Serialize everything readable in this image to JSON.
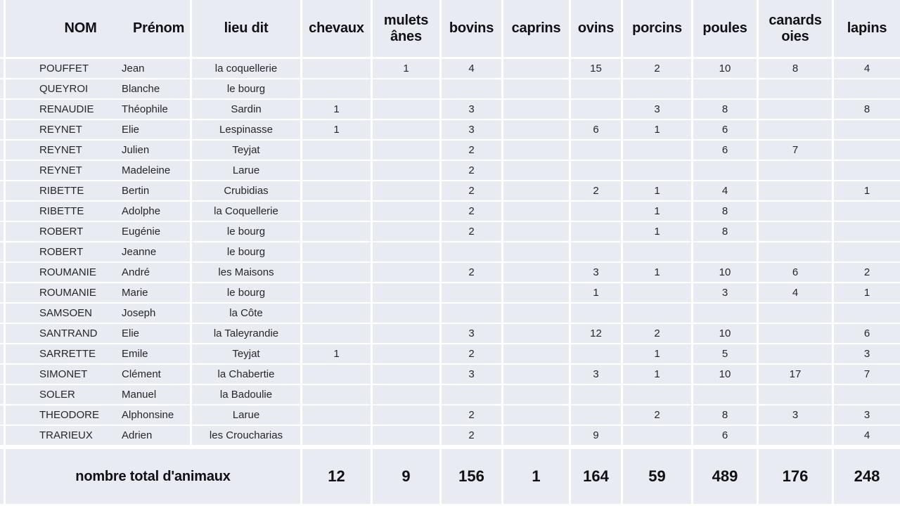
{
  "colors": {
    "cell_background": "#e9ebf3",
    "grid_line": "#ffffff",
    "text": "#262629",
    "bold_text": "#111114"
  },
  "table": {
    "header": {
      "nom": "NOM",
      "prenom": "Prénom",
      "lieu_dit": "lieu dit",
      "animal_columns": [
        "chevaux",
        "mulets ânes",
        "bovins",
        "caprins",
        "ovins",
        "porcins",
        "poules",
        "canards oies",
        "lapins"
      ]
    },
    "rows": [
      {
        "nom": "POUFFET",
        "prenom": "Jean",
        "lieu": "la coquellerie",
        "values": [
          "",
          "1",
          "4",
          "",
          "15",
          "2",
          "10",
          "8",
          "4"
        ]
      },
      {
        "nom": "QUEYROI",
        "prenom": "Blanche",
        "lieu": "le bourg",
        "values": [
          "",
          "",
          "",
          "",
          "",
          "",
          "",
          "",
          ""
        ]
      },
      {
        "nom": "RENAUDIE",
        "prenom": "Théophile",
        "lieu": "Sardin",
        "values": [
          "1",
          "",
          "3",
          "",
          "",
          "3",
          "8",
          "",
          "8"
        ]
      },
      {
        "nom": "REYNET",
        "prenom": "Elie",
        "lieu": "Lespinasse",
        "values": [
          "1",
          "",
          "3",
          "",
          "6",
          "1",
          "6",
          "",
          ""
        ]
      },
      {
        "nom": "REYNET",
        "prenom": "Julien",
        "lieu": "Teyjat",
        "values": [
          "",
          "",
          "2",
          "",
          "",
          "",
          "6",
          "7",
          ""
        ]
      },
      {
        "nom": "REYNET",
        "prenom": "Madeleine",
        "lieu": "Larue",
        "values": [
          "",
          "",
          "2",
          "",
          "",
          "",
          "",
          "",
          ""
        ]
      },
      {
        "nom": "RIBETTE",
        "prenom": "Bertin",
        "lieu": "Crubidias",
        "values": [
          "",
          "",
          "2",
          "",
          "2",
          "1",
          "4",
          "",
          "1"
        ]
      },
      {
        "nom": "RIBETTE",
        "prenom": "Adolphe",
        "lieu": "la Coquellerie",
        "values": [
          "",
          "",
          "2",
          "",
          "",
          "1",
          "8",
          "",
          ""
        ]
      },
      {
        "nom": "ROBERT",
        "prenom": "Eugénie",
        "lieu": "le bourg",
        "values": [
          "",
          "",
          "2",
          "",
          "",
          "1",
          "8",
          "",
          ""
        ]
      },
      {
        "nom": "ROBERT",
        "prenom": "Jeanne",
        "lieu": "le bourg",
        "values": [
          "",
          "",
          "",
          "",
          "",
          "",
          "",
          "",
          ""
        ]
      },
      {
        "nom": "ROUMANIE",
        "prenom": "André",
        "lieu": "les Maisons",
        "values": [
          "",
          "",
          "2",
          "",
          "3",
          "1",
          "10",
          "6",
          "2"
        ]
      },
      {
        "nom": "ROUMANIE",
        "prenom": "Marie",
        "lieu": "le bourg",
        "values": [
          "",
          "",
          "",
          "",
          "1",
          "",
          "3",
          "4",
          "1"
        ]
      },
      {
        "nom": "SAMSOEN",
        "prenom": "Joseph",
        "lieu": "la Côte",
        "values": [
          "",
          "",
          "",
          "",
          "",
          "",
          "",
          "",
          ""
        ]
      },
      {
        "nom": "SANTRAND",
        "prenom": "Elie",
        "lieu": "la Taleyrandie",
        "values": [
          "",
          "",
          "3",
          "",
          "12",
          "2",
          "10",
          "",
          "6"
        ]
      },
      {
        "nom": "SARRETTE",
        "prenom": "Emile",
        "lieu": "Teyjat",
        "values": [
          "1",
          "",
          "2",
          "",
          "",
          "1",
          "5",
          "",
          "3"
        ]
      },
      {
        "nom": "SIMONET",
        "prenom": "Clément",
        "lieu": "la Chabertie",
        "values": [
          "",
          "",
          "3",
          "",
          "3",
          "1",
          "10",
          "17",
          "7"
        ]
      },
      {
        "nom": "SOLER",
        "prenom": "Manuel",
        "lieu": "la Badoulie",
        "values": [
          "",
          "",
          "",
          "",
          "",
          "",
          "",
          "",
          ""
        ]
      },
      {
        "nom": "THEODORE",
        "prenom": "Alphonsine",
        "lieu": "Larue",
        "values": [
          "",
          "",
          "2",
          "",
          "",
          "2",
          "8",
          "3",
          "3"
        ]
      },
      {
        "nom": "TRARIEUX",
        "prenom": "Adrien",
        "lieu": "les Croucharias",
        "values": [
          "",
          "",
          "2",
          "",
          "9",
          "",
          "6",
          "",
          "4"
        ]
      }
    ],
    "total": {
      "label": "nombre total d'animaux",
      "values": [
        "12",
        "9",
        "156",
        "1",
        "164",
        "59",
        "489",
        "176",
        "248"
      ]
    }
  }
}
